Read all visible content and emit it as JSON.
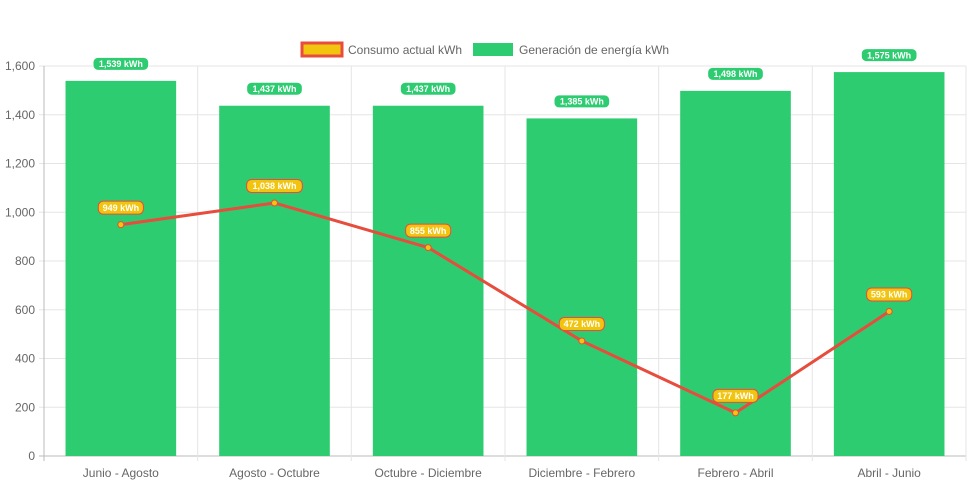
{
  "chart_data": {
    "type": "bar",
    "categories": [
      "Junio - Agosto",
      "Agosto - Octubre",
      "Octubre - Diciembre",
      "Diciembre - Febrero",
      "Febrero - Abril",
      "Abril - Junio"
    ],
    "series": [
      {
        "name": "Consumo actual kWh",
        "type": "line",
        "values": [
          949,
          1038,
          855,
          472,
          177,
          593
        ],
        "labels": [
          "949 kWh",
          "1,038 kWh",
          "855 kWh",
          "472 kWh",
          "177 kWh",
          "593 kWh"
        ],
        "color": "#e74c3c",
        "fill": "#f1c40f"
      },
      {
        "name": "Generación de energía kWh",
        "type": "bar",
        "values": [
          1539,
          1437,
          1437,
          1385,
          1498,
          1575
        ],
        "labels": [
          "1,539 kWh",
          "1,437 kWh",
          "1,437 kWh",
          "1,385 kWh",
          "1,498 kWh",
          "1,575 kWh"
        ],
        "color": "#2ecc71"
      }
    ],
    "ylim": [
      0,
      1600
    ],
    "yticks": [
      0,
      200,
      400,
      600,
      800,
      1000,
      1200,
      1400,
      1600
    ],
    "ytick_labels": [
      "0",
      "200",
      "400",
      "600",
      "800",
      "1,000",
      "1,200",
      "1,400",
      "1,600"
    ],
    "grid": true,
    "legend": "top-center"
  }
}
